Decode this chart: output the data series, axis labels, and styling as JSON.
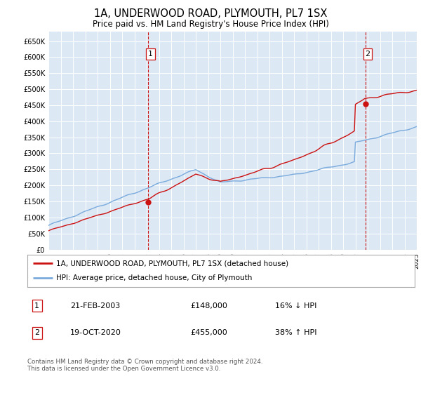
{
  "title": "1A, UNDERWOOD ROAD, PLYMOUTH, PL7 1SX",
  "subtitle": "Price paid vs. HM Land Registry's House Price Index (HPI)",
  "bg_color": "#dce9f5",
  "hpi_color": "#7aaadd",
  "price_color": "#cc1111",
  "ylim": [
    0,
    680000
  ],
  "yticks": [
    0,
    50000,
    100000,
    150000,
    200000,
    250000,
    300000,
    350000,
    400000,
    450000,
    500000,
    550000,
    600000,
    650000
  ],
  "year_start": 1995,
  "year_end": 2025,
  "sale1_year": 2003.13,
  "sale1_price": 148000,
  "sale2_year": 2020.8,
  "sale2_price": 455000,
  "legend_line1": "1A, UNDERWOOD ROAD, PLYMOUTH, PL7 1SX (detached house)",
  "legend_line2": "HPI: Average price, detached house, City of Plymouth",
  "table_row1": [
    "1",
    "21-FEB-2003",
    "£148,000",
    "16% ↓ HPI"
  ],
  "table_row2": [
    "2",
    "19-OCT-2020",
    "£455,000",
    "38% ↑ HPI"
  ],
  "footer": "Contains HM Land Registry data © Crown copyright and database right 2024.\nThis data is licensed under the Open Government Licence v3.0.",
  "grid_color": "#ffffff",
  "dashed_color": "#cc1111"
}
